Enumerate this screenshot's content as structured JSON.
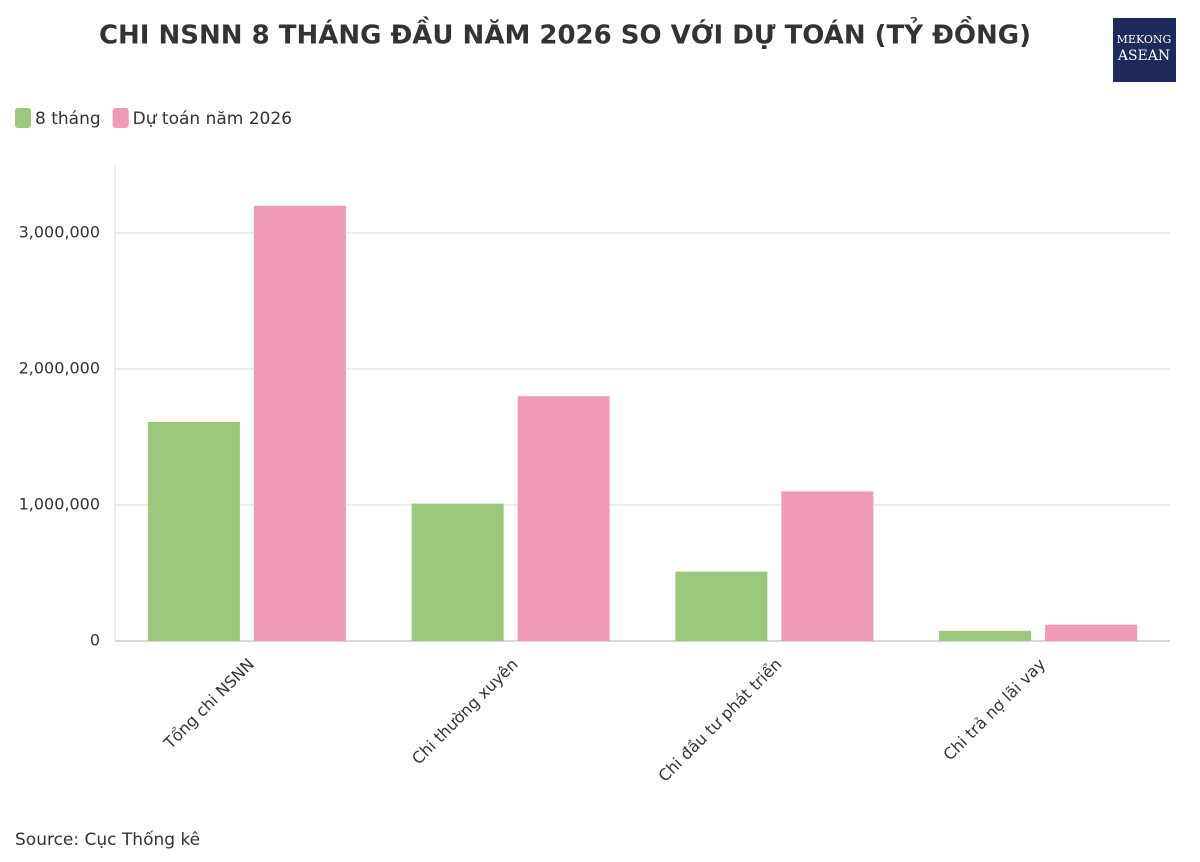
{
  "chart_data": {
    "type": "grouped_bar",
    "title": "CHI NSNN 8 THÁNG ĐẦU NĂM 2026 SO VỚI DỰ TOÁN (TỶ ĐỒNG)",
    "categories": [
      "Tổng chi NSNN",
      "Chi thường xuyên",
      "Chi đầu tư phát triển",
      "Chi trả nợ lãi vay"
    ],
    "series": [
      {
        "name": "8 tháng",
        "color": "#9bc87a",
        "values": [
          1610000,
          1010000,
          510000,
          75000
        ]
      },
      {
        "name": "Dự toán năm 2026",
        "color": "#f09ab6",
        "values": [
          3200000,
          1800000,
          1100000,
          120000
        ]
      }
    ],
    "ylim": [
      0,
      3500000
    ],
    "yticks": [
      0,
      {
        "value": 1000000,
        "label": "1,000,000"
      },
      {
        "value": 2000000,
        "label": "2,000,000"
      },
      {
        "value": 3000000,
        "label": "3,000,000"
      }
    ],
    "grid": true,
    "legend": "top-left",
    "source": "Source: Cục Thống kê"
  },
  "logo": {
    "line1": "MEKONG",
    "line2": "ASEAN"
  }
}
